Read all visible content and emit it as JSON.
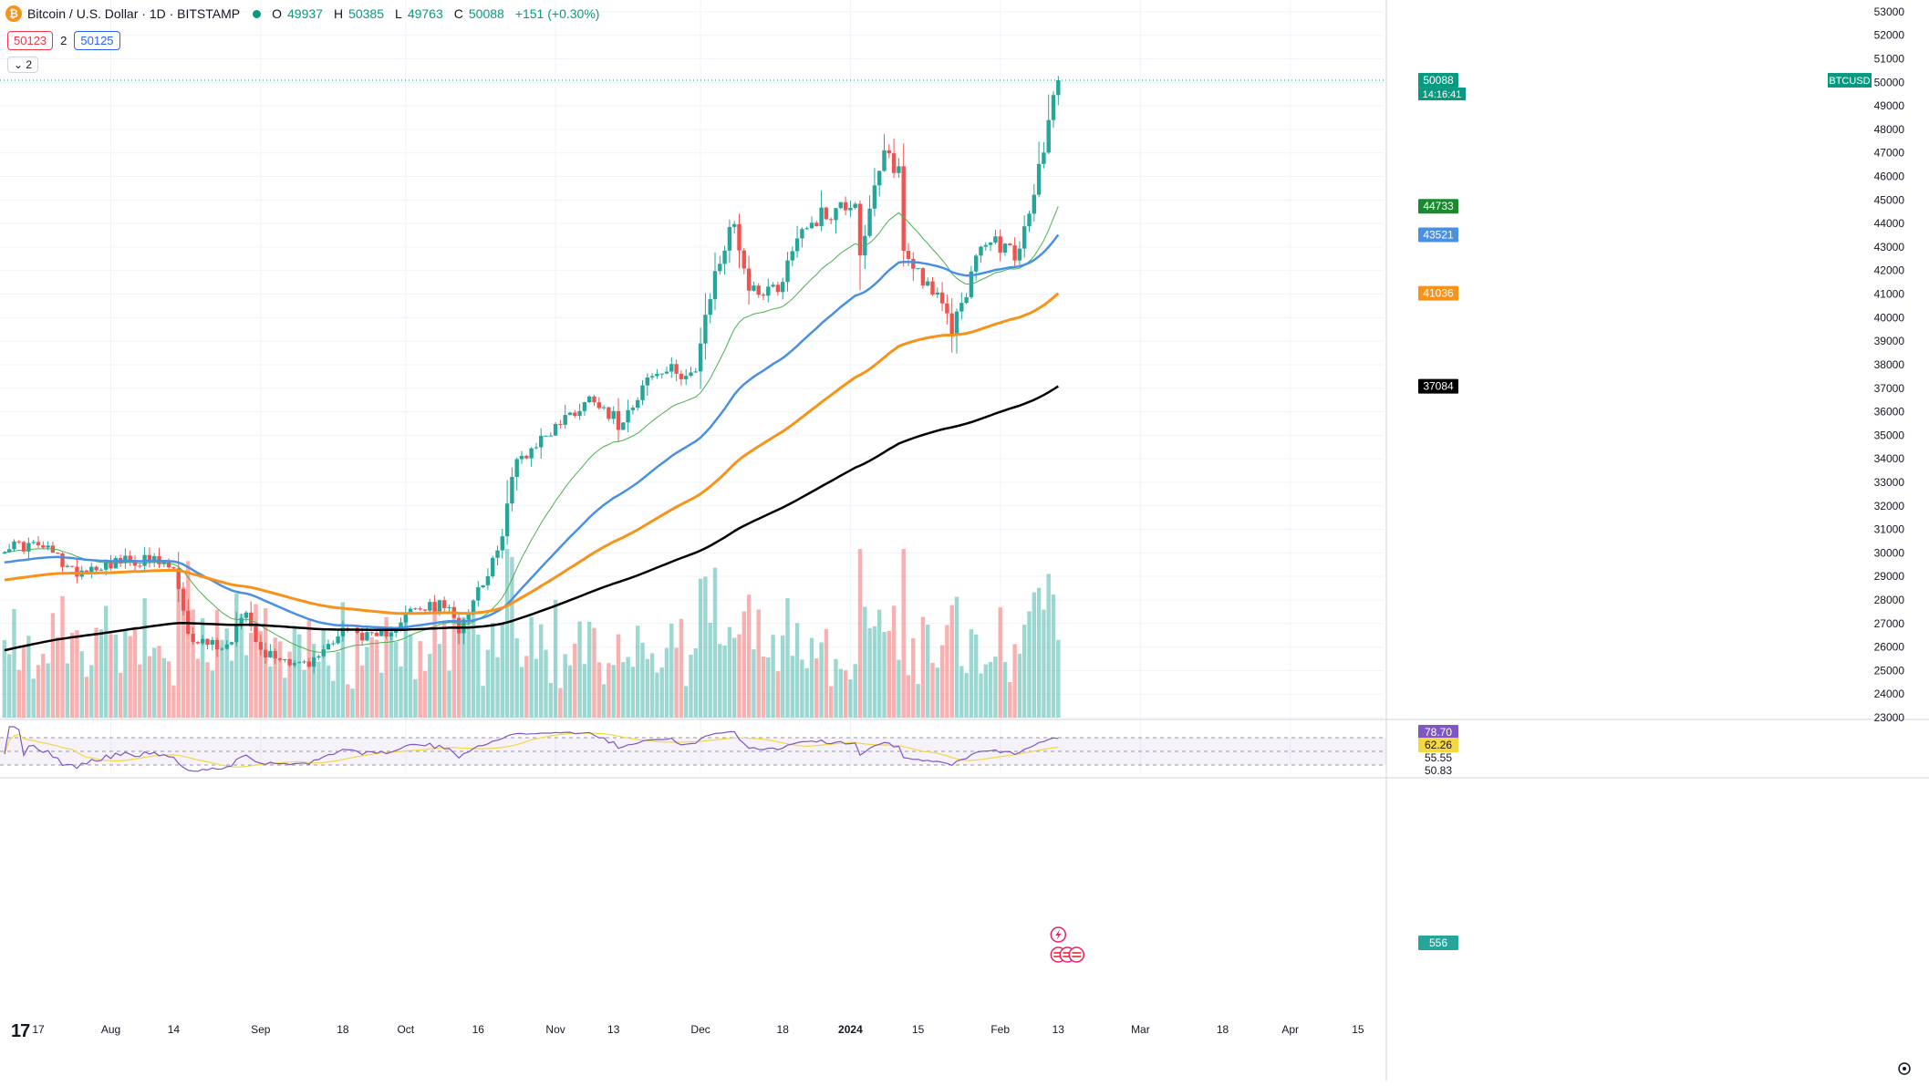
{
  "header": {
    "symbol_name": "Bitcoin / U.S. Dollar · 1D · BITSTAMP",
    "coin_glyph": "₿",
    "ohlc": [
      {
        "label": "O",
        "value": "49937"
      },
      {
        "label": "H",
        "value": "50385"
      },
      {
        "label": "L",
        "value": "49763"
      },
      {
        "label": "C",
        "value": "50088"
      }
    ],
    "change": "+151 (+0.30%)",
    "bid": "50123",
    "spread": "2",
    "ask": "50125",
    "collapse_label": "⌄ 2"
  },
  "logo_text": "17",
  "colors": {
    "up": "#26a69a",
    "down": "#ef5350",
    "ema20": "#4caf50",
    "ema50": "#4a90e2",
    "ema100": "#f7931a",
    "ema200": "#000000",
    "rsi": "#7e57c2",
    "rsi_ma": "#f5d742"
  },
  "price_axis": {
    "ticks": [
      "53000",
      "52000",
      "51000",
      "50000",
      "49000",
      "48000",
      "47000",
      "46000",
      "45000",
      "44000",
      "43000",
      "42000",
      "41000",
      "40000",
      "39000",
      "38000",
      "37000",
      "36000",
      "35000",
      "34000",
      "33000",
      "32000",
      "31000",
      "30000",
      "29000",
      "28000",
      "27000",
      "26000",
      "25000",
      "24000",
      "23000"
    ]
  },
  "price_badges": [
    {
      "name": "current-price",
      "label": "BTCUSD",
      "value": "50088",
      "sub": "14:16:41",
      "color": "#089981"
    },
    {
      "name": "ema20",
      "value": "44733",
      "color": "#1b8a2f"
    },
    {
      "name": "ema50",
      "value": "43521",
      "color": "#4a90e2"
    },
    {
      "name": "ema100",
      "value": "41036",
      "color": "#f7931a"
    },
    {
      "name": "ema200",
      "value": "37084",
      "color": "#000000"
    },
    {
      "name": "volume",
      "value": "556",
      "color": "#26a69a"
    }
  ],
  "rsi_axis": {
    "badges": [
      {
        "name": "rsi",
        "value": "78.70",
        "color": "#7e57c2"
      },
      {
        "name": "rsi-ma",
        "value": "62.26",
        "color": "#f5d742"
      }
    ],
    "ticks": [
      "55.55",
      "50.83"
    ]
  },
  "time_axis": {
    "labels": [
      "17",
      "Aug",
      "14",
      "Sep",
      "18",
      "Oct",
      "16",
      "Nov",
      "13",
      "Dec",
      "18",
      "2024",
      "15",
      "Feb",
      "13",
      "Mar",
      "18",
      "Apr",
      "15"
    ]
  },
  "chart_data": {
    "type": "candlestick",
    "title": "Bitcoin / U.S. Dollar · 1D · BITSTAMP",
    "ylim": [
      23000,
      53500
    ],
    "last_close": 50088,
    "anchors": [
      {
        "date": "2023-07-17",
        "close": 30300
      },
      {
        "date": "2023-07-20",
        "close": 30000
      },
      {
        "date": "2023-07-24",
        "close": 29200
      },
      {
        "date": "2023-08-01",
        "close": 29600
      },
      {
        "date": "2023-08-09",
        "close": 29700
      },
      {
        "date": "2023-08-14",
        "close": 29300
      },
      {
        "date": "2023-08-17",
        "close": 26400
      },
      {
        "date": "2023-08-25",
        "close": 26000
      },
      {
        "date": "2023-08-29",
        "close": 27700
      },
      {
        "date": "2023-09-01",
        "close": 25800
      },
      {
        "date": "2023-09-11",
        "close": 25200
      },
      {
        "date": "2023-09-18",
        "close": 26800
      },
      {
        "date": "2023-09-25",
        "close": 26300
      },
      {
        "date": "2023-10-02",
        "close": 27500
      },
      {
        "date": "2023-10-09",
        "close": 27800
      },
      {
        "date": "2023-10-12",
        "close": 26800
      },
      {
        "date": "2023-10-16",
        "close": 28500
      },
      {
        "date": "2023-10-20",
        "close": 29900
      },
      {
        "date": "2023-10-23",
        "close": 33100
      },
      {
        "date": "2023-10-24",
        "close": 33900
      },
      {
        "date": "2023-11-01",
        "close": 35400
      },
      {
        "date": "2023-11-09",
        "close": 36700
      },
      {
        "date": "2023-11-14",
        "close": 35500
      },
      {
        "date": "2023-11-20",
        "close": 37400
      },
      {
        "date": "2023-11-24",
        "close": 37700
      },
      {
        "date": "2023-11-30",
        "close": 37700
      },
      {
        "date": "2023-12-04",
        "close": 41900
      },
      {
        "date": "2023-12-08",
        "close": 44100
      },
      {
        "date": "2023-12-11",
        "close": 41200
      },
      {
        "date": "2023-12-17",
        "close": 41300
      },
      {
        "date": "2023-12-22",
        "close": 43900
      },
      {
        "date": "2024-01-02",
        "close": 45000
      },
      {
        "date": "2024-01-03",
        "close": 42800
      },
      {
        "date": "2024-01-08",
        "close": 46900
      },
      {
        "date": "2024-01-11",
        "close": 46300
      },
      {
        "date": "2024-01-12",
        "close": 42800
      },
      {
        "date": "2024-01-18",
        "close": 41200
      },
      {
        "date": "2024-01-22",
        "close": 39500
      },
      {
        "date": "2024-01-26",
        "close": 41800
      },
      {
        "date": "2024-01-29",
        "close": 43300
      },
      {
        "date": "2024-02-05",
        "close": 42700
      },
      {
        "date": "2024-02-08",
        "close": 45300
      },
      {
        "date": "2024-02-11",
        "close": 48300
      },
      {
        "date": "2024-02-12",
        "close": 49900
      },
      {
        "date": "2024-02-13",
        "close": 50088
      }
    ],
    "ema_periods": [
      20,
      50,
      100,
      200
    ],
    "ema_last": {
      "ema20": 44733,
      "ema50": 43521,
      "ema100": 41036,
      "ema200": 37084
    },
    "volume_last": 556,
    "rsi_last": 78.7,
    "rsi_ma_last": 62.26
  }
}
